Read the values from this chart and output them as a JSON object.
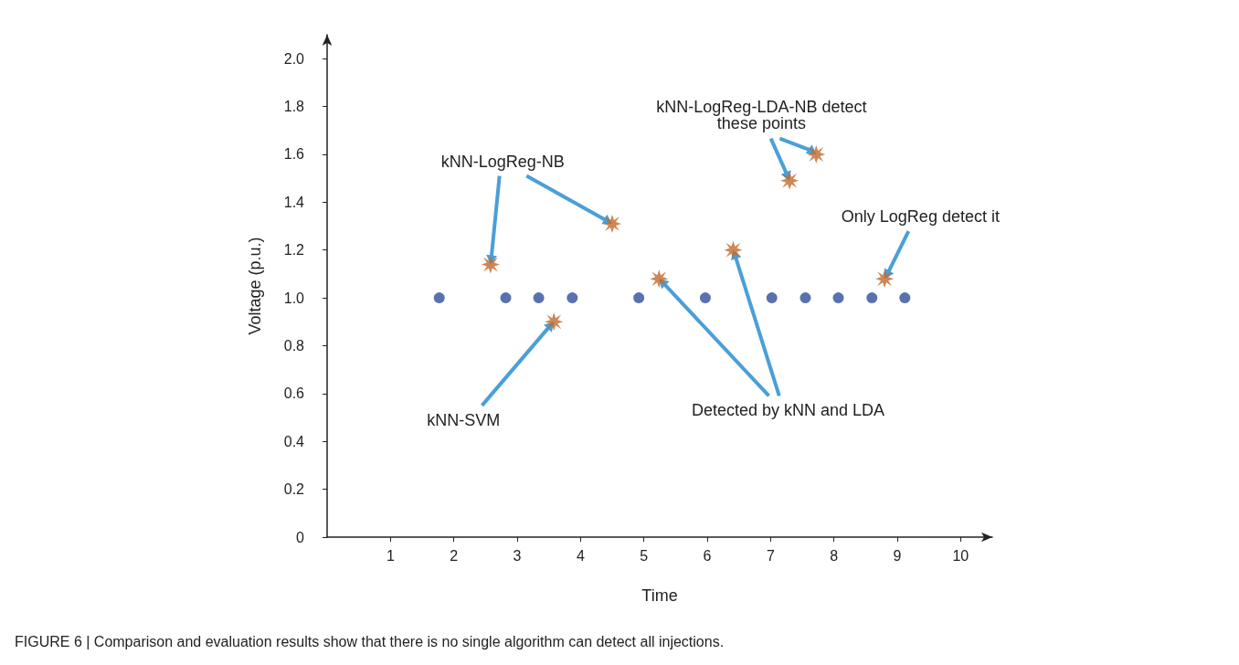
{
  "chart_data": {
    "type": "scatter",
    "xlabel": "Time",
    "ylabel": "Voltage (p.u.)",
    "xlim": [
      0,
      10.5
    ],
    "xticks": [
      1,
      2,
      3,
      4,
      5,
      6,
      7,
      8,
      9,
      10
    ],
    "ylim": [
      0,
      2.1
    ],
    "yticks": [
      0,
      0.2,
      0.4,
      0.6,
      0.8,
      {
        "value": 1,
        "label": "1.0"
      },
      1.2,
      1.4,
      1.6,
      1.8,
      {
        "value": 2,
        "label": "2.0"
      }
    ],
    "grid": false,
    "series": [
      {
        "color": "#2f4f9a",
        "marker": "circle",
        "x": [
          1.77,
          2.82,
          3.34,
          3.87,
          4.92,
          5.97,
          7.02,
          7.55,
          8.07,
          8.6,
          9.12
        ],
        "values": [
          1,
          1,
          1,
          1,
          1,
          1,
          1,
          1,
          1,
          1,
          1
        ]
      },
      {
        "color": "#c0692a",
        "marker": "star",
        "x": [
          2.58,
          4.5,
          3.58,
          5.24,
          6.41,
          7.3,
          7.72,
          8.8
        ],
        "values": [
          1.14,
          1.31,
          0.9,
          1.08,
          1.2,
          1.49,
          1.6,
          1.08
        ]
      }
    ],
    "annotations": [
      {
        "text": "kNN-LogReg-NB",
        "x": 2.58,
        "y": 1.14
      },
      {
        "text": "kNN-LogReg-LDA-NB detect\nthese points",
        "x": 7.3,
        "y": 1.49
      },
      {
        "text": "Only LogReg detect it",
        "x": 8.8,
        "y": 1.08
      },
      {
        "text": "kNN-SVM",
        "x": 3.58,
        "y": 0.9
      },
      {
        "text": "Detected by kNN and LDA",
        "x": 5.24,
        "y": 1.08
      },
      "FIGURE 6 | Comparison and evaluation results show that there is no single algorithm can detect all injections."
    ]
  }
}
